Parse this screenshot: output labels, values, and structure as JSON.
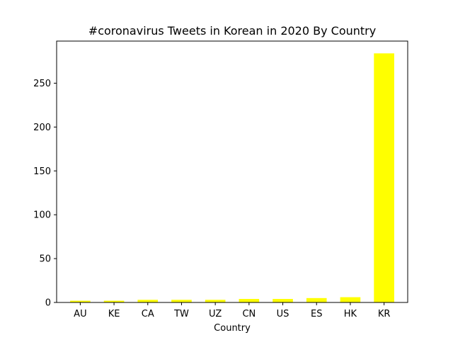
{
  "chart_data": {
    "type": "bar",
    "title": "#coronavirus Tweets in Korean in 2020 By Country",
    "xlabel": "Country",
    "ylabel": "",
    "categories": [
      "AU",
      "KE",
      "CA",
      "TW",
      "UZ",
      "CN",
      "US",
      "ES",
      "HK",
      "KR"
    ],
    "values": [
      2,
      2,
      3,
      3,
      3,
      4,
      4,
      5,
      6,
      284
    ],
    "ylim": [
      0,
      298
    ],
    "yticks": [
      0,
      50,
      100,
      150,
      200,
      250
    ],
    "bar_color": "#ffff00",
    "grid": false,
    "legend": "none"
  }
}
